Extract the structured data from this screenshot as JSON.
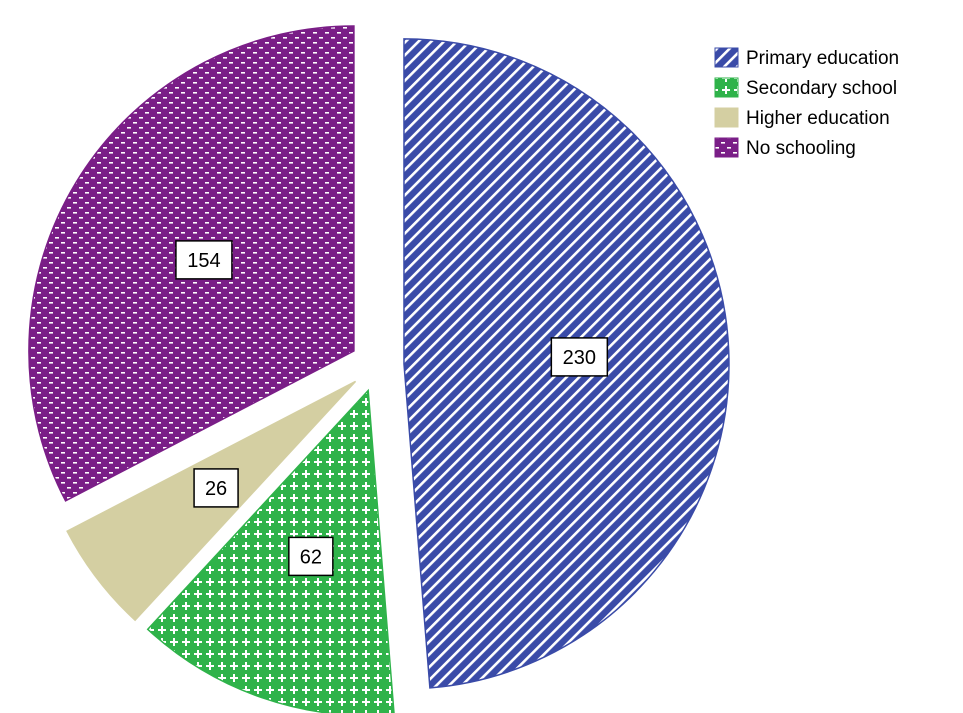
{
  "chart_data": {
    "type": "pie",
    "start_angle_deg": 0,
    "direction": "clockwise",
    "exploded": true,
    "legend_position": "top-right",
    "slices": [
      {
        "name": "Primary education",
        "value": 230,
        "label": "230",
        "color": "#3a4ba8",
        "pattern": "diagonal-stripes"
      },
      {
        "name": "Secondary school",
        "value": 62,
        "label": "62",
        "color": "#2fb34a",
        "pattern": "plus-grid"
      },
      {
        "name": "Higher education",
        "value": 26,
        "label": "26",
        "color": "#d4cfa2",
        "pattern": "solid"
      },
      {
        "name": "No schooling",
        "value": 154,
        "label": "154",
        "color": "#7a1e87",
        "pattern": "dashes"
      }
    ]
  }
}
